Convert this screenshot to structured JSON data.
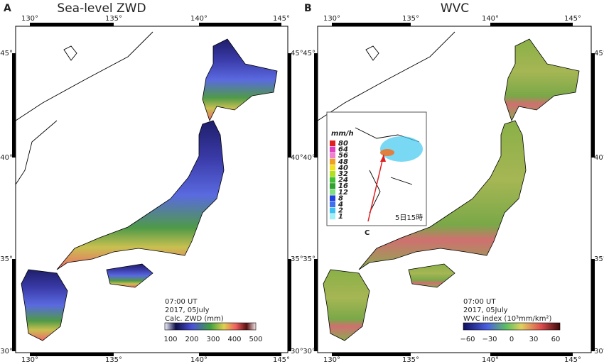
{
  "panels": [
    {
      "label": "A",
      "title": "Sea-level ZWD",
      "top_ticks": [
        "130°",
        "135°",
        "140°",
        "145°"
      ],
      "left_ticks": [
        "45°",
        "40°",
        "35°",
        "30°"
      ],
      "right_ticks": [
        "45°",
        "40°",
        "35°",
        "30°"
      ],
      "bottom_ticks": [
        "130°",
        "135°",
        "140°",
        "145°"
      ],
      "annotation": [
        "07:00 UT",
        "2017, 05July",
        "Calc. ZWD (mm)"
      ],
      "colorbar_ticks": [
        "100",
        "200",
        "300",
        "400",
        "500"
      ]
    },
    {
      "label": "B",
      "title": "WVC",
      "top_ticks": [
        "130°",
        "135°",
        "140°",
        "145°"
      ],
      "left_ticks": [
        "45°",
        "40°",
        "35°",
        "30°"
      ],
      "right_ticks": [
        "45°",
        "40°",
        "35°",
        "30°"
      ],
      "bottom_ticks": [
        "130°",
        "135°",
        "140°",
        "145°"
      ],
      "annotation": [
        "07:00 UT",
        "2017, 05July",
        "WVC index (10³mm/km²)"
      ],
      "colorbar_ticks": [
        "−60",
        "−30",
        "0",
        "30",
        "60"
      ]
    }
  ],
  "inset": {
    "unit": "mm/h",
    "legend": [
      "80",
      "64",
      "56",
      "48",
      "40",
      "32",
      "24",
      "16",
      "12",
      "8",
      "4",
      "2",
      "1"
    ],
    "timestamp": "5日15時",
    "label": "C"
  }
}
